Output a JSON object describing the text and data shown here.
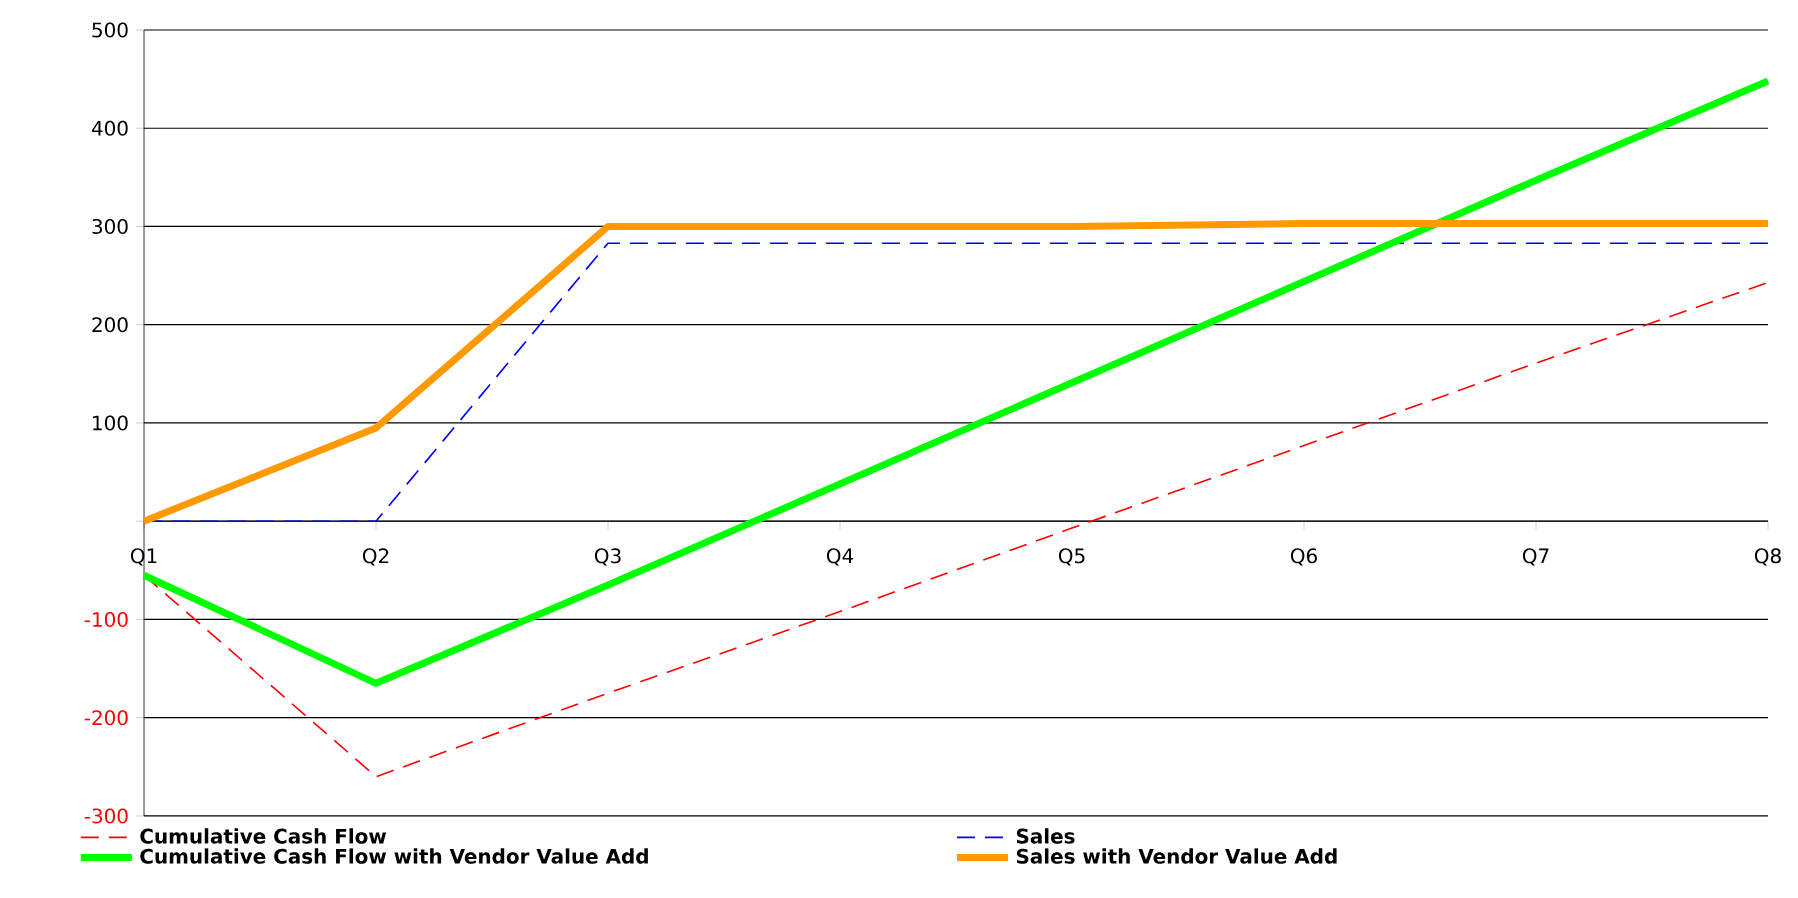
{
  "chart_data": {
    "type": "line",
    "categories": [
      "Q1",
      "Q2",
      "Q3",
      "Q4",
      "Q5",
      "Q6",
      "Q7",
      "Q8"
    ],
    "series": [
      {
        "name": "Cumulative Cash Flow",
        "color": "#ff0000",
        "line_style": "dashed",
        "values": [
          -55,
          -260,
          -175,
          -92,
          -7,
          77,
          161,
          243
        ]
      },
      {
        "name": "Sales",
        "color": "#0000ff",
        "line_style": "dashed",
        "values": [
          0,
          0,
          283,
          283,
          283,
          283,
          283,
          283
        ]
      },
      {
        "name": "Cumulative Cash Flow with Vendor Value Add",
        "color": "#00ff00",
        "line_style": "solid",
        "values": [
          -55,
          -165,
          -65,
          38,
          141,
          244,
          347,
          448
        ]
      },
      {
        "name": "Sales with Vendor Value Add",
        "color": "#ff9900",
        "line_style": "solid",
        "values": [
          0,
          95,
          300,
          300,
          300,
          303,
          303,
          303
        ]
      }
    ],
    "ylim": [
      -300,
      500
    ],
    "yticks": [
      -300,
      -200,
      -100,
      {
        "value": 0,
        "label": null
      },
      100,
      200,
      300,
      400,
      500
    ],
    "grid": "y",
    "legend": "bottom"
  }
}
